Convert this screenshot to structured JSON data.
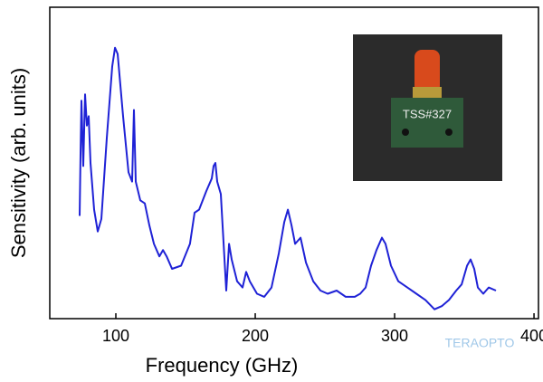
{
  "chart_data": {
    "type": "line",
    "x_label": "Frequency (GHz)",
    "y_label": "Sensitivity (arb. units)",
    "inset_label": "TSS#327",
    "watermark": "TERAOPTO",
    "xlim": [
      52.6,
      403.2
    ],
    "xticks": [
      100,
      200,
      300,
      400
    ],
    "ylim": [
      0,
      1
    ],
    "series": [
      {
        "name": null,
        "color": "#1f22d6",
        "x": [
          74.0,
          74.7,
          75.3,
          76.6,
          77.9,
          79.2,
          80.5,
          81.8,
          84.4,
          87.0,
          89.6,
          93.5,
          97.4,
          99.4,
          101.3,
          105.2,
          109.1,
          111.7,
          113.0,
          114.3,
          117.5,
          120.8,
          124.0,
          127.3,
          131.2,
          133.8,
          136.4,
          140.3,
          146.8,
          153.2,
          156.5,
          159.7,
          164.9,
          168.8,
          170.1,
          171.4,
          172.7,
          175.3,
          179.2,
          181.2,
          183.1,
          187.0,
          190.9,
          193.5,
          196.1,
          201.3,
          206.5,
          211.7,
          216.9,
          220.8,
          223.4,
          226.0,
          228.6,
          232.5,
          236.4,
          241.6,
          246.8,
          252.0,
          258.4,
          264.9,
          271.4,
          275.3,
          279.2,
          283.1,
          287.0,
          290.9,
          293.5,
          297.4,
          302.6,
          309.1,
          315.6,
          322.1,
          328.6,
          333.8,
          339.0,
          344.2,
          348.1,
          352.0,
          354.5,
          357.1,
          359.7,
          363.6,
          367.5,
          372.7
        ],
        "values": [
          0.33,
          0.53,
          0.7,
          0.49,
          0.72,
          0.62,
          0.65,
          0.5,
          0.35,
          0.28,
          0.32,
          0.58,
          0.81,
          0.87,
          0.85,
          0.65,
          0.47,
          0.44,
          0.67,
          0.44,
          0.38,
          0.37,
          0.3,
          0.24,
          0.2,
          0.22,
          0.2,
          0.16,
          0.17,
          0.24,
          0.34,
          0.35,
          0.41,
          0.45,
          0.49,
          0.5,
          0.44,
          0.4,
          0.09,
          0.24,
          0.19,
          0.12,
          0.1,
          0.15,
          0.12,
          0.08,
          0.07,
          0.1,
          0.21,
          0.31,
          0.35,
          0.3,
          0.24,
          0.26,
          0.18,
          0.12,
          0.09,
          0.08,
          0.09,
          0.07,
          0.07,
          0.08,
          0.1,
          0.17,
          0.22,
          0.26,
          0.24,
          0.17,
          0.12,
          0.1,
          0.08,
          0.06,
          0.03,
          0.04,
          0.06,
          0.09,
          0.11,
          0.17,
          0.19,
          0.16,
          0.1,
          0.08,
          0.1,
          0.09
        ]
      }
    ]
  }
}
